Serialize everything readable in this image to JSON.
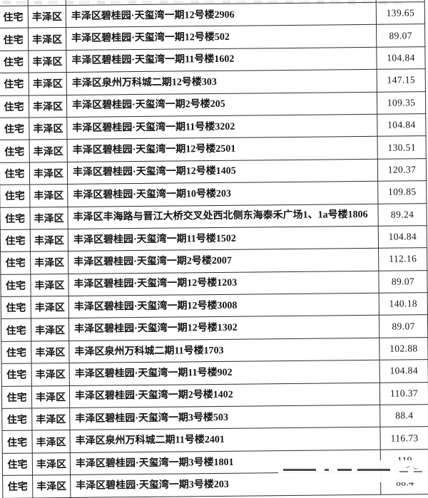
{
  "table": {
    "column_keys": [
      "type",
      "district",
      "address",
      "area"
    ],
    "rows": [
      {
        "type": "住宅",
        "district": "丰泽区",
        "address": "丰泽区碧桂园·天玺湾一期12号楼2906",
        "area": "139.65"
      },
      {
        "type": "住宅",
        "district": "丰泽区",
        "address": "丰泽区碧桂园·天玺湾一期12号楼502",
        "area": "89.07"
      },
      {
        "type": "住宅",
        "district": "丰泽区",
        "address": "丰泽区碧桂园·天玺湾一期11号楼1602",
        "area": "104.84"
      },
      {
        "type": "住宅",
        "district": "丰泽区",
        "address": "丰泽区泉州万科城二期12号楼303",
        "area": "147.15"
      },
      {
        "type": "住宅",
        "district": "丰泽区",
        "address": "丰泽区碧桂园·天玺湾一期2号楼205",
        "area": "109.35"
      },
      {
        "type": "住宅",
        "district": "丰泽区",
        "address": "丰泽区碧桂园·天玺湾一期11号楼3202",
        "area": "104.84"
      },
      {
        "type": "住宅",
        "district": "丰泽区",
        "address": "丰泽区碧桂园·天玺湾一期12号楼2501",
        "area": "130.51"
      },
      {
        "type": "住宅",
        "district": "丰泽区",
        "address": "丰泽区碧桂园·天玺湾一期12号楼1405",
        "area": "120.37"
      },
      {
        "type": "住宅",
        "district": "丰泽区",
        "address": "丰泽区碧桂园·天玺湾一期10号楼203",
        "area": "109.85"
      },
      {
        "type": "住宅",
        "district": "丰泽区",
        "address": "丰泽区丰海路与晋江大桥交叉处西北侧东海泰禾广场1、1a号楼1806",
        "area": "89.24"
      },
      {
        "type": "住宅",
        "district": "丰泽区",
        "address": "丰泽区碧桂园·天玺湾一期11号楼1502",
        "area": "104.84"
      },
      {
        "type": "住宅",
        "district": "丰泽区",
        "address": "丰泽区碧桂园·天玺湾一期2号楼2007",
        "area": "112.16"
      },
      {
        "type": "住宅",
        "district": "丰泽区",
        "address": "丰泽区碧桂园·天玺湾一期12号楼1203",
        "area": "89.07"
      },
      {
        "type": "住宅",
        "district": "丰泽区",
        "address": "丰泽区碧桂园·天玺湾一期12号楼3008",
        "area": "140.18"
      },
      {
        "type": "住宅",
        "district": "丰泽区",
        "address": "丰泽区碧桂园·天玺湾一期12号楼1302",
        "area": "89.07"
      },
      {
        "type": "住宅",
        "district": "丰泽区",
        "address": "丰泽区泉州万科城二期11号楼1703",
        "area": "102.88"
      },
      {
        "type": "住宅",
        "district": "丰泽区",
        "address": "丰泽区碧桂园·天玺湾一期11号楼902",
        "area": "104.84"
      },
      {
        "type": "住宅",
        "district": "丰泽区",
        "address": "丰泽区碧桂园·天玺湾一期2号楼1402",
        "area": "110.37"
      },
      {
        "type": "住宅",
        "district": "丰泽区",
        "address": "丰泽区碧桂园·天玺湾一期3号楼503",
        "area": "88.4"
      },
      {
        "type": "住宅",
        "district": "丰泽区",
        "address": "丰泽区泉州万科城二期11号楼2401",
        "area": "116.73"
      },
      {
        "type": "住宅",
        "district": "丰泽区",
        "address": "丰泽区碧桂园·天玺湾一期3号楼1801",
        "area": "119"
      },
      {
        "type": "住宅",
        "district": "丰泽区",
        "address": "丰泽区碧桂园·天玺湾一期3号楼203",
        "area": "88.4"
      }
    ]
  }
}
